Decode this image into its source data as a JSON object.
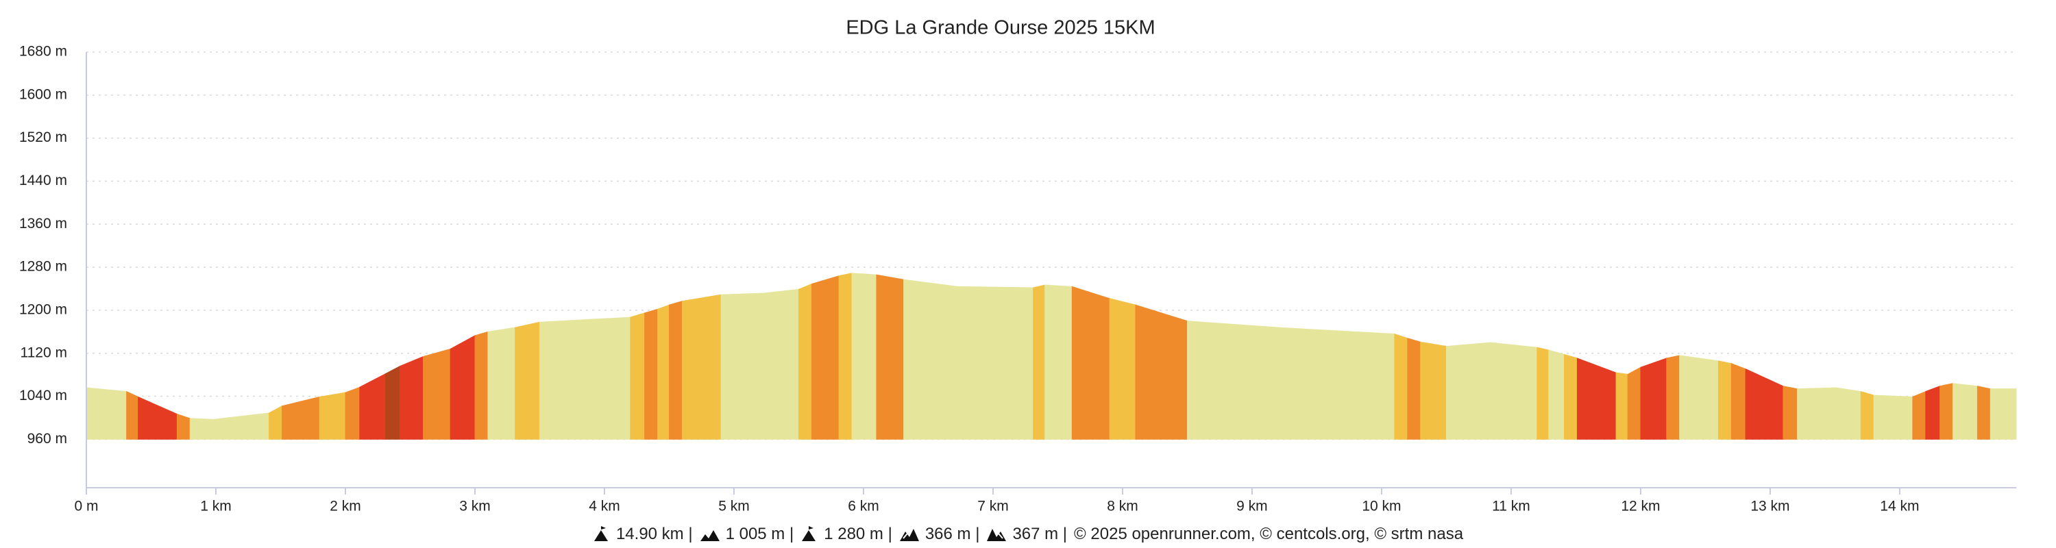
{
  "chart_data": {
    "type": "area",
    "title": "EDG La Grande Ourse 2025 15KM",
    "x": [
      0,
      0.31,
      0.4,
      0.7,
      0.8,
      0.98,
      1.41,
      1.51,
      1.8,
      2.0,
      2.11,
      2.31,
      2.42,
      2.6,
      2.81,
      3.0,
      3.1,
      3.31,
      3.5,
      4.2,
      4.31,
      4.41,
      4.5,
      4.6,
      4.9,
      5.24,
      5.5,
      5.6,
      5.81,
      5.91,
      6.1,
      6.31,
      6.73,
      7.31,
      7.4,
      7.61,
      7.9,
      8.1,
      8.5,
      9.2,
      10.1,
      10.2,
      10.3,
      10.5,
      10.84,
      11.2,
      11.29,
      11.41,
      11.51,
      11.81,
      11.9,
      12.0,
      12.2,
      12.3,
      12.6,
      12.7,
      12.81,
      13.1,
      13.21,
      13.51,
      13.7,
      13.8,
      14.1,
      14.2,
      14.31,
      14.41,
      14.6,
      14.7,
      14.9
    ],
    "values": [
      1056,
      1049,
      1039,
      1007,
      999,
      997,
      1009,
      1022,
      1039,
      1047,
      1057,
      1082,
      1096,
      1114,
      1128,
      1153,
      1160,
      1168,
      1178,
      1187,
      1195,
      1202,
      1210,
      1217,
      1229,
      1232,
      1239,
      1249,
      1264,
      1269,
      1266,
      1257,
      1244,
      1242,
      1247,
      1244,
      1222,
      1210,
      1180,
      1168,
      1156,
      1148,
      1141,
      1133,
      1140,
      1131,
      1126,
      1118,
      1111,
      1084,
      1081,
      1094,
      1111,
      1116,
      1106,
      1101,
      1091,
      1059,
      1054,
      1056,
      1049,
      1042,
      1039,
      1049,
      1059,
      1064,
      1059,
      1054,
      1054
    ],
    "segment_colors": [
      "#e5e69b",
      "#ef8b2b",
      "#e53b22",
      "#ef8b2b",
      "#e5e69b",
      "#e5e69b",
      "#f2c144",
      "#ef8b2b",
      "#f2c144",
      "#ef8b2b",
      "#e53b22",
      "#b4441c",
      "#e53b22",
      "#ef8b2b",
      "#e53b22",
      "#ef8b2b",
      "#e5e69b",
      "#f2c144",
      "#e5e69b",
      "#f2c144",
      "#ef8b2b",
      "#f2c144",
      "#ef8b2b",
      "#f2c144",
      "#e5e69b",
      "#e5e69b",
      "#f2c144",
      "#ef8b2b",
      "#f2c144",
      "#e5e69b",
      "#ef8b2b",
      "#e5e69b",
      "#e5e69b",
      "#f2c144",
      "#e5e69b",
      "#ef8b2b",
      "#f2c144",
      "#ef8b2b",
      "#e5e69b",
      "#e5e69b",
      "#f2c144",
      "#ef8b2b",
      "#f2c144",
      "#e5e69b",
      "#e5e69b",
      "#f2c144",
      "#e5e69b",
      "#f2c144",
      "#e53b22",
      "#f2c144",
      "#ef8b2b",
      "#e53b22",
      "#ef8b2b",
      "#e5e69b",
      "#f2c144",
      "#ef8b2b",
      "#e53b22",
      "#ef8b2b",
      "#e5e69b",
      "#e5e69b",
      "#f2c144",
      "#e5e69b",
      "#ef8b2b",
      "#e53b22",
      "#ef8b2b",
      "#e5e69b",
      "#ef8b2b",
      "#e5e69b"
    ],
    "xlim": [
      0,
      14.9
    ],
    "ylim": [
      870,
      1680
    ],
    "xticks": [
      {
        "value": 0,
        "label": "0 m"
      },
      {
        "value": 1,
        "label": "1 km"
      },
      {
        "value": 2,
        "label": "2 km"
      },
      {
        "value": 3,
        "label": "3 km"
      },
      {
        "value": 4,
        "label": "4 km"
      },
      {
        "value": 5,
        "label": "5 km"
      },
      {
        "value": 6,
        "label": "6 km"
      },
      {
        "value": 7,
        "label": "7 km"
      },
      {
        "value": 8,
        "label": "8 km"
      },
      {
        "value": 9,
        "label": "9 km"
      },
      {
        "value": 10,
        "label": "10 km"
      },
      {
        "value": 11,
        "label": "11 km"
      },
      {
        "value": 12,
        "label": "12 km"
      },
      {
        "value": 13,
        "label": "13 km"
      },
      {
        "value": 14,
        "label": "14 km"
      }
    ],
    "yticks": [
      {
        "value": 960,
        "label": "960 m"
      },
      {
        "value": 1040,
        "label": "1040 m"
      },
      {
        "value": 1120,
        "label": "1120 m"
      },
      {
        "value": 1200,
        "label": "1200 m"
      },
      {
        "value": 1280,
        "label": "1280 m"
      },
      {
        "value": 1360,
        "label": "1360 m"
      },
      {
        "value": 1440,
        "label": "1440 m"
      },
      {
        "value": 1520,
        "label": "1520 m"
      },
      {
        "value": 1600,
        "label": "1600 m"
      },
      {
        "value": 1680,
        "label": "1680 m"
      }
    ],
    "grid": true
  },
  "footer": {
    "stats": [
      "14.90 km |",
      "1 005 m |",
      "1 280 m |",
      "366 m |",
      "367 m |"
    ],
    "credits": "© 2025 openrunner.com, © centcols.org, © srtm nasa"
  }
}
